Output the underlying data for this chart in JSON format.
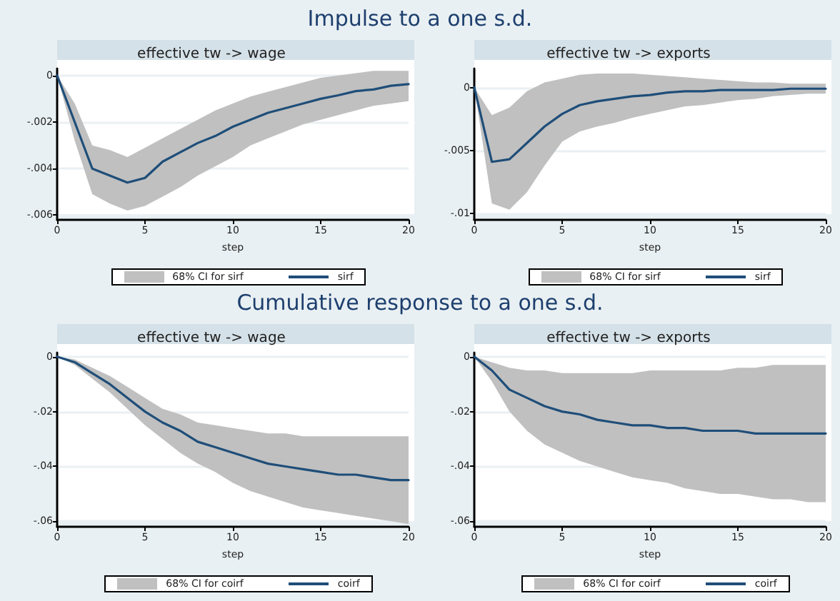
{
  "chart_data": [
    {
      "type": "line",
      "title": "Impulse to a one s.d.",
      "subtitle": "effective tw -> wage",
      "xlabel": "step",
      "x": [
        0,
        1,
        2,
        3,
        4,
        5,
        6,
        7,
        8,
        9,
        10,
        11,
        12,
        13,
        14,
        15,
        16,
        17,
        18,
        19,
        20
      ],
      "xlim": [
        0,
        20
      ],
      "xticks": [
        0,
        5,
        10,
        15,
        20
      ],
      "ylim": [
        -0.0062,
        0.0003
      ],
      "yticks": [
        {
          "value": -0.006,
          "label": "-.006"
        },
        {
          "value": -0.004,
          "label": "-.004"
        },
        {
          "value": -0.002,
          "label": "-.002"
        },
        {
          "value": 0,
          "label": "0"
        }
      ],
      "grid": "y",
      "legend": "bottom",
      "annotations": [
        "68% CI for sirf"
      ],
      "series": [
        {
          "name": "sirf",
          "color": "#1f4e79",
          "values": [
            0,
            -0.002,
            -0.004,
            -0.0043,
            -0.0046,
            -0.0044,
            -0.0037,
            -0.0033,
            -0.0029,
            -0.0026,
            -0.0022,
            -0.0019,
            -0.0016,
            -0.0014,
            -0.0012,
            -0.001,
            -0.00085,
            -0.00067,
            -0.0006,
            -0.00044,
            -0.00037
          ],
          "lower": [
            0,
            -0.0028,
            -0.0051,
            -0.0055,
            -0.0058,
            -0.0056,
            -0.0052,
            -0.0048,
            -0.0043,
            -0.0039,
            -0.0035,
            -0.003,
            -0.0027,
            -0.0024,
            -0.0021,
            -0.0019,
            -0.0017,
            -0.0015,
            -0.0013,
            -0.0012,
            -0.0011
          ],
          "upper": [
            0,
            -0.0012,
            -0.003,
            -0.0032,
            -0.0035,
            -0.0031,
            -0.0027,
            -0.0023,
            -0.0019,
            -0.0015,
            -0.0012,
            -0.0009,
            -0.0007,
            -0.0005,
            -0.0003,
            -0.0001,
            0,
            0.0001,
            0.0002,
            0.0002,
            0.0002
          ]
        }
      ]
    },
    {
      "type": "line",
      "subtitle": "effective tw -> exports",
      "xlabel": "step",
      "x": [
        0,
        1,
        2,
        3,
        4,
        5,
        6,
        7,
        8,
        9,
        10,
        11,
        12,
        13,
        14,
        15,
        16,
        17,
        18,
        19,
        20
      ],
      "xlim": [
        0,
        20
      ],
      "xticks": [
        0,
        5,
        10,
        15,
        20
      ],
      "ylim": [
        -0.0105,
        0.0015
      ],
      "yticks": [
        {
          "value": -0.01,
          "label": "-.01"
        },
        {
          "value": -0.005,
          "label": "-.005"
        },
        {
          "value": 0,
          "label": "0"
        }
      ],
      "grid": "y",
      "legend": "bottom",
      "annotations": [
        "68% CI for sirf"
      ],
      "series": [
        {
          "name": "sirf",
          "color": "#1f4e79",
          "values": [
            0,
            -0.0059,
            -0.0057,
            -0.0044,
            -0.0031,
            -0.0021,
            -0.0014,
            -0.0011,
            -0.0009,
            -0.0007,
            -0.0006,
            -0.0004,
            -0.0003,
            -0.0003,
            -0.0002,
            -0.0002,
            -0.0002,
            -0.0002,
            -0.0001,
            -0.0001,
            -0.0001
          ],
          "lower": [
            0,
            -0.0092,
            -0.0097,
            -0.0083,
            -0.0062,
            -0.0043,
            -0.0035,
            -0.0031,
            -0.0028,
            -0.0024,
            -0.0021,
            -0.0018,
            -0.0015,
            -0.0014,
            -0.0012,
            -0.001,
            -0.0009,
            -0.0007,
            -0.0006,
            -0.0005,
            -0.0005
          ],
          "upper": [
            0,
            -0.0022,
            -0.0016,
            -0.0003,
            0.0004,
            0.0007,
            0.001,
            0.0011,
            0.0011,
            0.0011,
            0.001,
            0.0009,
            0.0008,
            0.0007,
            0.0006,
            0.0005,
            0.0004,
            0.0004,
            0.0003,
            0.0003,
            0.0003
          ]
        }
      ]
    },
    {
      "type": "line",
      "title": "Cumulative response to a one s.d.",
      "subtitle": "effective tw -> wage",
      "xlabel": "step",
      "x": [
        0,
        1,
        2,
        3,
        4,
        5,
        6,
        7,
        8,
        9,
        10,
        11,
        12,
        13,
        14,
        15,
        16,
        17,
        18,
        19,
        20
      ],
      "xlim": [
        0,
        20
      ],
      "xticks": [
        0,
        5,
        10,
        15,
        20
      ],
      "ylim": [
        -0.062,
        0.0015
      ],
      "yticks": [
        {
          "value": -0.06,
          "label": "-.06"
        },
        {
          "value": -0.04,
          "label": "-.04"
        },
        {
          "value": -0.02,
          "label": "-.02"
        },
        {
          "value": 0,
          "label": "0"
        }
      ],
      "grid": "y",
      "legend": "bottom",
      "annotations": [
        "68% CI for coirf"
      ],
      "series": [
        {
          "name": "coirf",
          "color": "#1f4e79",
          "values": [
            0,
            -0.002,
            -0.006,
            -0.01,
            -0.015,
            -0.02,
            -0.024,
            -0.027,
            -0.031,
            -0.033,
            -0.035,
            -0.037,
            -0.039,
            -0.04,
            -0.041,
            -0.042,
            -0.043,
            -0.043,
            -0.044,
            -0.045,
            -0.045
          ],
          "lower": [
            0,
            -0.003,
            -0.008,
            -0.013,
            -0.019,
            -0.025,
            -0.03,
            -0.035,
            -0.039,
            -0.042,
            -0.046,
            -0.049,
            -0.051,
            -0.053,
            -0.055,
            -0.056,
            -0.057,
            -0.058,
            -0.059,
            -0.06,
            -0.061
          ],
          "upper": [
            0,
            -0.001,
            -0.004,
            -0.007,
            -0.011,
            -0.015,
            -0.019,
            -0.021,
            -0.024,
            -0.025,
            -0.026,
            -0.027,
            -0.028,
            -0.028,
            -0.029,
            -0.029,
            -0.029,
            -0.029,
            -0.029,
            -0.029,
            -0.029
          ]
        }
      ]
    },
    {
      "type": "line",
      "subtitle": "effective tw -> exports",
      "xlabel": "step",
      "x": [
        0,
        1,
        2,
        3,
        4,
        5,
        6,
        7,
        8,
        9,
        10,
        11,
        12,
        13,
        14,
        15,
        16,
        17,
        18,
        19,
        20
      ],
      "xlim": [
        0,
        20
      ],
      "xticks": [
        0,
        5,
        10,
        15,
        20
      ],
      "ylim": [
        -0.062,
        0.0015
      ],
      "yticks": [
        {
          "value": -0.06,
          "label": "-.06"
        },
        {
          "value": -0.04,
          "label": "-.04"
        },
        {
          "value": -0.02,
          "label": "-.02"
        },
        {
          "value": 0,
          "label": "0"
        }
      ],
      "grid": "y",
      "legend": "bottom",
      "annotations": [
        "68% CI for coirf"
      ],
      "series": [
        {
          "name": "coirf",
          "color": "#1f4e79",
          "values": [
            0,
            -0.005,
            -0.012,
            -0.015,
            -0.018,
            -0.02,
            -0.021,
            -0.023,
            -0.024,
            -0.025,
            -0.025,
            -0.026,
            -0.026,
            -0.027,
            -0.027,
            -0.027,
            -0.028,
            -0.028,
            -0.028,
            -0.028,
            -0.028
          ],
          "lower": [
            0,
            -0.009,
            -0.02,
            -0.027,
            -0.032,
            -0.035,
            -0.038,
            -0.04,
            -0.042,
            -0.044,
            -0.045,
            -0.046,
            -0.048,
            -0.049,
            -0.05,
            -0.05,
            -0.051,
            -0.052,
            -0.052,
            -0.053,
            -0.053
          ],
          "upper": [
            0,
            -0.002,
            -0.004,
            -0.005,
            -0.005,
            -0.006,
            -0.006,
            -0.006,
            -0.006,
            -0.006,
            -0.005,
            -0.005,
            -0.005,
            -0.005,
            -0.005,
            -0.004,
            -0.004,
            -0.003,
            -0.003,
            -0.003,
            -0.003
          ]
        }
      ]
    }
  ]
}
